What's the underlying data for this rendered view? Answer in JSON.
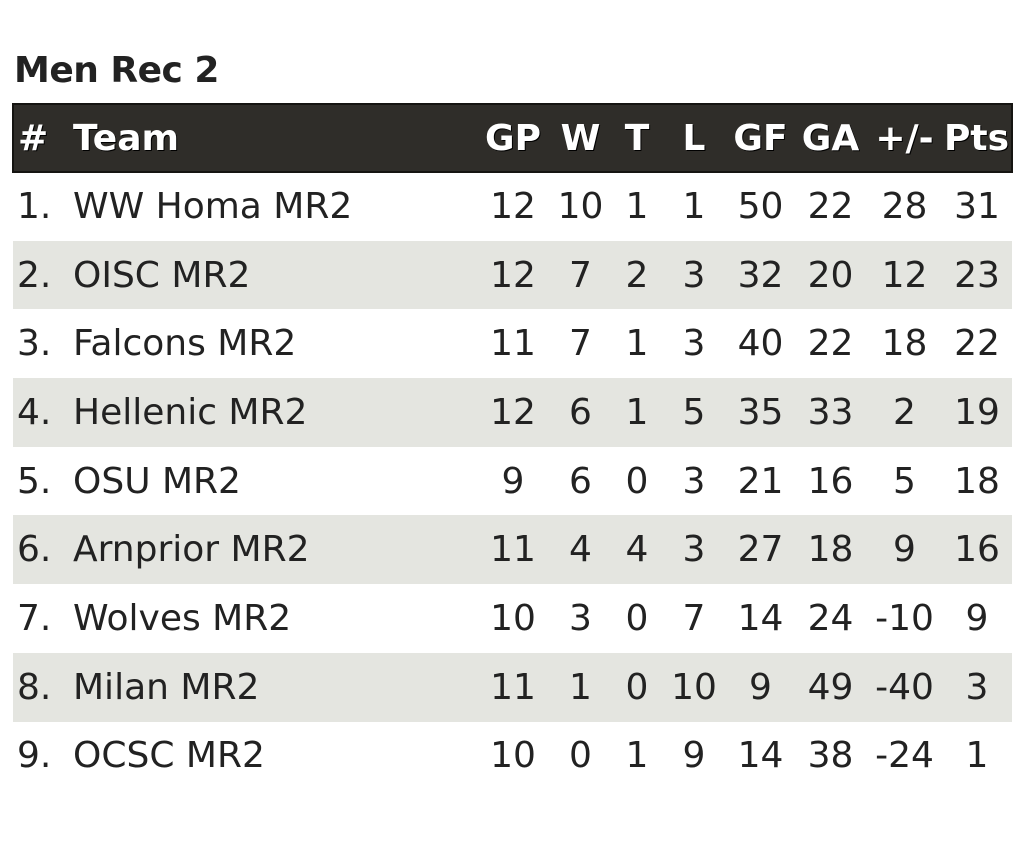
{
  "title": "Men Rec 2",
  "columns": {
    "rank": "#",
    "team": "Team",
    "gp": "GP",
    "w": "W",
    "t": "T",
    "l": "L",
    "gf": "GF",
    "ga": "GA",
    "pm": "+/-",
    "pts": "Pts"
  },
  "rows": [
    {
      "rank": "1.",
      "team": "WW Homa MR2",
      "gp": "12",
      "w": "10",
      "t": "1",
      "l": "1",
      "gf": "50",
      "ga": "22",
      "pm": "28",
      "pts": "31"
    },
    {
      "rank": "2.",
      "team": "OISC MR2",
      "gp": "12",
      "w": "7",
      "t": "2",
      "l": "3",
      "gf": "32",
      "ga": "20",
      "pm": "12",
      "pts": "23"
    },
    {
      "rank": "3.",
      "team": "Falcons MR2",
      "gp": "11",
      "w": "7",
      "t": "1",
      "l": "3",
      "gf": "40",
      "ga": "22",
      "pm": "18",
      "pts": "22"
    },
    {
      "rank": "4.",
      "team": "Hellenic MR2",
      "gp": "12",
      "w": "6",
      "t": "1",
      "l": "5",
      "gf": "35",
      "ga": "33",
      "pm": "2",
      "pts": "19"
    },
    {
      "rank": "5.",
      "team": "OSU MR2",
      "gp": "9",
      "w": "6",
      "t": "0",
      "l": "3",
      "gf": "21",
      "ga": "16",
      "pm": "5",
      "pts": "18"
    },
    {
      "rank": "6.",
      "team": "Arnprior MR2",
      "gp": "11",
      "w": "4",
      "t": "4",
      "l": "3",
      "gf": "27",
      "ga": "18",
      "pm": "9",
      "pts": "16"
    },
    {
      "rank": "7.",
      "team": "Wolves MR2",
      "gp": "10",
      "w": "3",
      "t": "0",
      "l": "7",
      "gf": "14",
      "ga": "24",
      "pm": "-10",
      "pts": "9"
    },
    {
      "rank": "8.",
      "team": "Milan MR2",
      "gp": "11",
      "w": "1",
      "t": "0",
      "l": "10",
      "gf": "9",
      "ga": "49",
      "pm": "-40",
      "pts": "3"
    },
    {
      "rank": "9.",
      "team": "OCSC MR2",
      "gp": "10",
      "w": "0",
      "t": "1",
      "l": "9",
      "gf": "14",
      "ga": "38",
      "pm": "-24",
      "pts": "1"
    }
  ],
  "colors": {
    "header_bg": "#2f2d29",
    "alt_row_bg": "#e4e5e0"
  }
}
